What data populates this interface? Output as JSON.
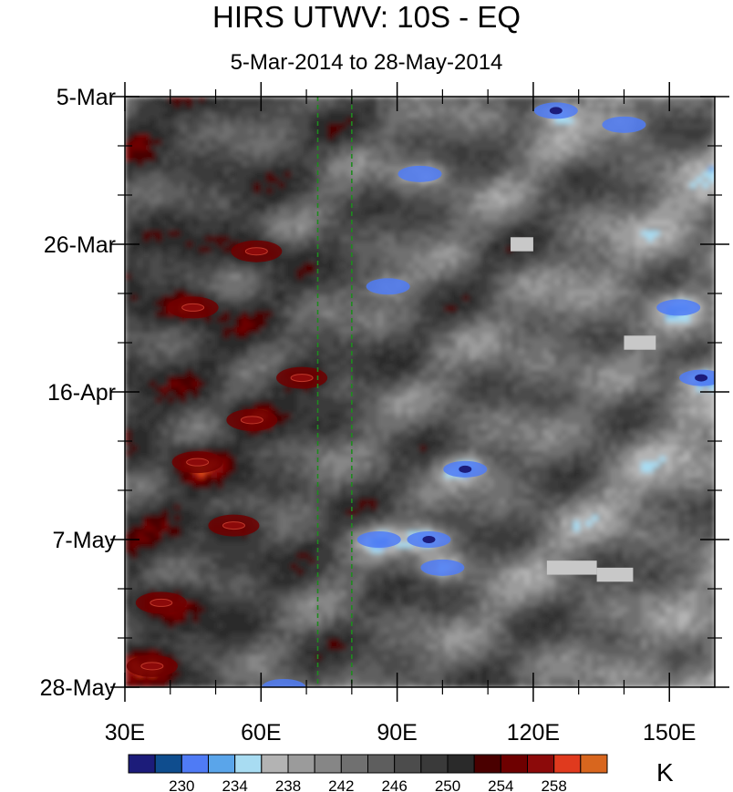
{
  "chart_data": {
    "type": "heatmap",
    "title": "HIRS UTWV: 10S - EQ",
    "subtitle": "5-Mar-2014 to 28-May-2014",
    "x_axis": {
      "range": [
        30,
        160
      ],
      "ticks": [
        30,
        60,
        90,
        120,
        150
      ],
      "tick_labels": [
        "30E",
        "60E",
        "90E",
        "120E",
        "150E"
      ]
    },
    "y_axis": {
      "range_days": [
        0,
        84
      ],
      "ticks_days": [
        0,
        21,
        42,
        63,
        84
      ],
      "tick_labels": [
        "5-Mar",
        "26-Mar",
        "16-Apr",
        "7-May",
        "28-May"
      ],
      "reversed": true
    },
    "reference_lines_lon": [
      72.5,
      80
    ],
    "colorbar": {
      "unit": "K",
      "levels_labeled": [
        230,
        234,
        238,
        242,
        246,
        250,
        254,
        258
      ],
      "colors": [
        "#1c1c7a",
        "#0f4d8e",
        "#4f7bf5",
        "#5aa5ea",
        "#a8dcf2",
        "#b3b3b3",
        "#9b9b9b",
        "#868686",
        "#707070",
        "#5e5e5e",
        "#4c4c4c",
        "#3a3a3a",
        "#2a2a2a",
        "#4a0000",
        "#6e0000",
        "#8c0a0a",
        "#e03a1e",
        "#d8661e"
      ]
    },
    "hot_spots": [
      {
        "lon": 45,
        "day": 30,
        "value": 256
      },
      {
        "lon": 69,
        "day": 40,
        "value": 256
      },
      {
        "lon": 58,
        "day": 46,
        "value": 255
      },
      {
        "lon": 46,
        "day": 52,
        "value": 255
      },
      {
        "lon": 54,
        "day": 61,
        "value": 254
      },
      {
        "lon": 38,
        "day": 72,
        "value": 254
      },
      {
        "lon": 36,
        "day": 81,
        "value": 254
      },
      {
        "lon": 59,
        "day": 22,
        "value": 253
      }
    ],
    "cold_spots": [
      {
        "lon": 125,
        "day": 2,
        "value": 232
      },
      {
        "lon": 140,
        "day": 4,
        "value": 234
      },
      {
        "lon": 95,
        "day": 11,
        "value": 234
      },
      {
        "lon": 88,
        "day": 27,
        "value": 235
      },
      {
        "lon": 152,
        "day": 30,
        "value": 234
      },
      {
        "lon": 157,
        "day": 40,
        "value": 232
      },
      {
        "lon": 105,
        "day": 53,
        "value": 230
      },
      {
        "lon": 97,
        "day": 63,
        "value": 229
      },
      {
        "lon": 86,
        "day": 63,
        "value": 233
      },
      {
        "lon": 100,
        "day": 67,
        "value": 233
      },
      {
        "lon": 65,
        "day": 84,
        "value": 236
      }
    ],
    "missing_boxes": [
      {
        "lon_range": [
          115,
          120
        ],
        "day_range": [
          20,
          22
        ]
      },
      {
        "lon_range": [
          140,
          147
        ],
        "day_range": [
          34,
          36
        ]
      },
      {
        "lon_range": [
          123,
          134
        ],
        "day_range": [
          66,
          68
        ]
      },
      {
        "lon_range": [
          134,
          142
        ],
        "day_range": [
          67,
          69
        ]
      }
    ]
  }
}
